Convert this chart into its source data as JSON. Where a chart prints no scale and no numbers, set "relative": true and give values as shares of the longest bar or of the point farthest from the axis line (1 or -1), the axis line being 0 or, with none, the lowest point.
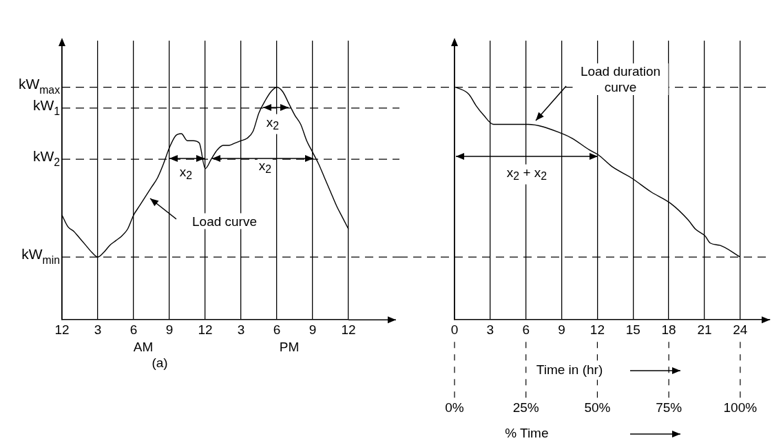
{
  "chart_data": [
    {
      "type": "line",
      "relative": true,
      "color": "#000000",
      "categories": [
        "12",
        null,
        null,
        null,
        null,
        null,
        "3",
        null,
        null,
        null,
        null,
        null,
        "6",
        null,
        null,
        null,
        null,
        null,
        "9",
        null,
        null,
        null,
        null,
        null,
        "12",
        null,
        null,
        null,
        null,
        null,
        "3",
        null,
        null,
        null,
        null,
        null,
        "6",
        null,
        null,
        null,
        null,
        null,
        "9",
        null,
        null,
        null,
        null,
        null,
        "12"
      ],
      "values": [
        0.45,
        0.4,
        0.38,
        0.35,
        0.32,
        0.29,
        0.27,
        0.29,
        0.32,
        0.34,
        0.36,
        0.39,
        0.45,
        0.49,
        0.53,
        0.57,
        0.61,
        0.67,
        0.74,
        0.79,
        0.8,
        0.77,
        0.77,
        0.76,
        0.65,
        0.69,
        0.73,
        0.75,
        0.75,
        0.76,
        0.77,
        0.78,
        0.81,
        0.89,
        0.94,
        0.98,
        1.0,
        0.98,
        0.93,
        0.88,
        0.84,
        0.77,
        0.72,
        0.67,
        0.61,
        0.55,
        0.49,
        0.44,
        0.39
      ],
      "grid": "x",
      "tick_labels": "x",
      "ref_lines": [
        {
          "axis": "y",
          "value": 1.0,
          "label": "kW$_{max}$",
          "line_style": "dashed"
        },
        {
          "axis": "y",
          "value": 0.91,
          "label": "kW$_{1}$",
          "line_style": "dashed"
        },
        {
          "axis": "y",
          "value": 0.69,
          "label": "kW$_{2}$",
          "line_style": "dashed"
        },
        {
          "axis": "y",
          "value": 0.27,
          "label": "kW$_{min}$",
          "line_style": "dashed"
        }
      ],
      "annotations": [
        "x$_{2}$",
        "x$_{2}$",
        "x$_{2}$",
        "Load curve",
        "AM",
        "PM",
        "(a)"
      ]
    },
    {
      "type": "line",
      "relative": true,
      "color": "#000000",
      "x": [
        0.12,
        1.2,
        1.82,
        2.44,
        3.27,
        6.17,
        9.07,
        9.89,
        11.34,
        12.06,
        13.2,
        14.86,
        16.51,
        18.17,
        19.62,
        20.24,
        21.06,
        21.48,
        22.31,
        24
      ],
      "values": [
        1.0,
        0.97,
        0.92,
        0.88,
        0.84,
        0.84,
        0.8,
        0.78,
        0.73,
        0.71,
        0.66,
        0.61,
        0.55,
        0.5,
        0.43,
        0.39,
        0.36,
        0.33,
        0.32,
        0.27
      ],
      "xlim": [
        0,
        26.5
      ],
      "xticks": [
        0,
        3,
        6,
        9,
        12,
        15,
        18,
        21,
        24
      ],
      "xlabel": "Time in (hr)",
      "x2lim": [
        0,
        110.4
      ],
      "x2ticks": [
        {
          "value": 0,
          "label": "0%"
        },
        {
          "value": 25,
          "label": "25%"
        },
        {
          "value": 50,
          "label": "50%"
        },
        {
          "value": 75,
          "label": "75%"
        },
        {
          "value": 100,
          "label": "100%"
        }
      ],
      "x2label": "% Time",
      "grid": "x",
      "tick_labels": "x",
      "ref_lines": [
        {
          "axis": "y",
          "value": 1.0,
          "line_style": "dashed"
        },
        {
          "axis": "y",
          "value": 0.27,
          "line_style": "dashed"
        }
      ],
      "annotations": [
        "Load duration curve",
        "x$_{2}$ + x$_{2}$"
      ]
    }
  ]
}
